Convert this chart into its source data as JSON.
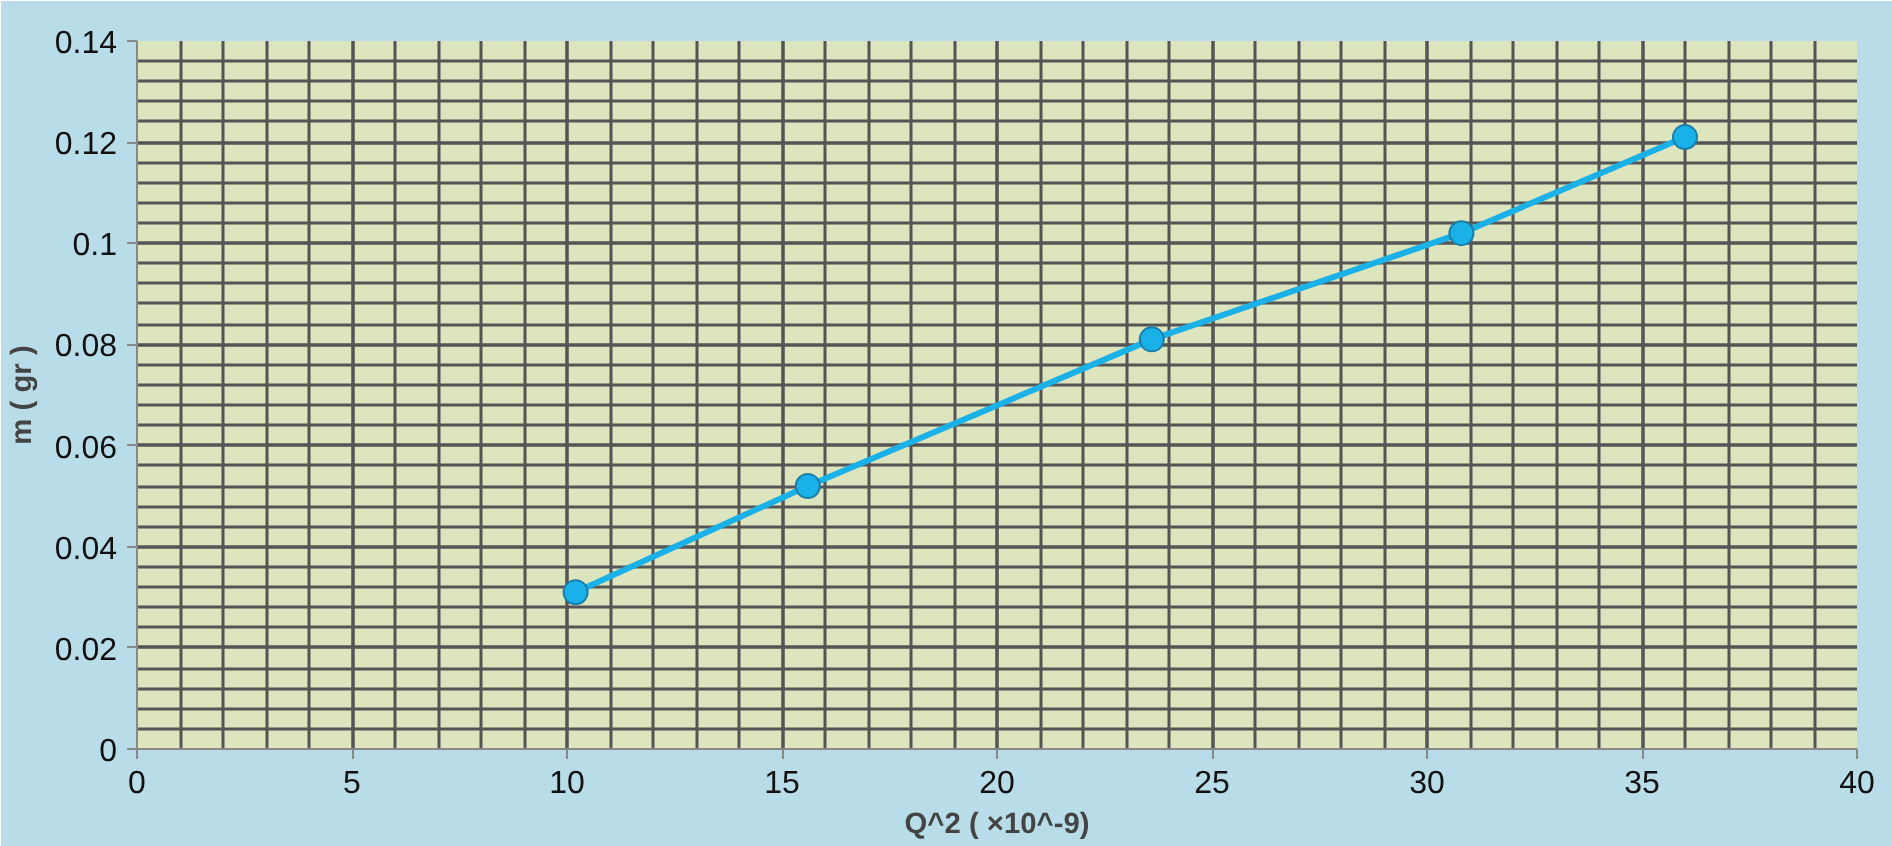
{
  "chart_data": {
    "type": "line",
    "xlabel": "Q^2 ( ×10^-9)",
    "ylabel": "m ( gr )",
    "x": [
      10.2,
      15.6,
      23.6,
      30.8,
      36.0
    ],
    "series": [
      {
        "color": "#1ab0e8",
        "values": [
          0.031,
          0.052,
          0.081,
          0.102,
          0.121
        ]
      }
    ],
    "xlim": [
      0,
      40
    ],
    "xticks": [
      0,
      5,
      10,
      15,
      20,
      25,
      30,
      35,
      40
    ],
    "ylim": [
      0,
      0.14
    ],
    "yticks": [
      0,
      0.02,
      0.04,
      0.06,
      0.08,
      {
        "value": 0.1,
        "label": "0.1"
      },
      0.12,
      0.14
    ],
    "grid": true,
    "marker": "circle",
    "line_style": "solid"
  }
}
